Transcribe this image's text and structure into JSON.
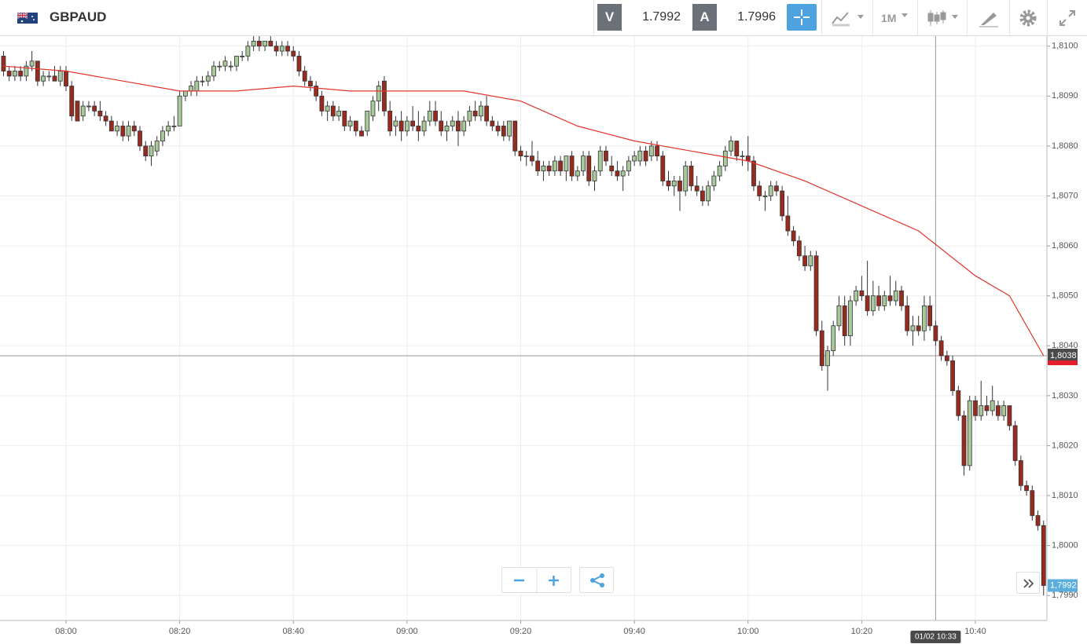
{
  "header": {
    "symbol": "GBPAUD",
    "bid_label": "V",
    "bid": 1.7992,
    "ask_label": "A",
    "ask": 1.7996,
    "timeframe": "1M"
  },
  "chart_data": {
    "type": "candlestick",
    "x": [
      "07:49",
      "07:50",
      "07:51",
      "07:52",
      "07:53",
      "07:54",
      "07:55",
      "07:56",
      "07:57",
      "07:58",
      "07:59",
      "08:00",
      "08:01",
      "08:02",
      "08:03",
      "08:04",
      "08:05",
      "08:06",
      "08:07",
      "08:08",
      "08:09",
      "08:10",
      "08:11",
      "08:12",
      "08:13",
      "08:14",
      "08:15",
      "08:16",
      "08:17",
      "08:18",
      "08:19",
      "08:20",
      "08:21",
      "08:22",
      "08:23",
      "08:24",
      "08:25",
      "08:26",
      "08:27",
      "08:28",
      "08:29",
      "08:30",
      "08:31",
      "08:32",
      "08:33",
      "08:34",
      "08:35",
      "08:36",
      "08:37",
      "08:38",
      "08:39",
      "08:40",
      "08:41",
      "08:42",
      "08:43",
      "08:44",
      "08:45",
      "08:46",
      "08:47",
      "08:48",
      "08:49",
      "08:50",
      "08:51",
      "08:52",
      "08:53",
      "08:54",
      "08:55",
      "08:56",
      "08:57",
      "08:58",
      "08:59",
      "09:00",
      "09:01",
      "09:02",
      "09:03",
      "09:04",
      "09:05",
      "09:06",
      "09:07",
      "09:08",
      "09:09",
      "09:10",
      "09:11",
      "09:12",
      "09:13",
      "09:14",
      "09:15",
      "09:16",
      "09:17",
      "09:18",
      "09:19",
      "09:20",
      "09:21",
      "09:22",
      "09:23",
      "09:24",
      "09:25",
      "09:26",
      "09:27",
      "09:28",
      "09:29",
      "09:30",
      "09:31",
      "09:32",
      "09:33",
      "09:34",
      "09:35",
      "09:36",
      "09:37",
      "09:38",
      "09:39",
      "09:40",
      "09:41",
      "09:42",
      "09:43",
      "09:44",
      "09:45",
      "09:46",
      "09:47",
      "09:48",
      "09:49",
      "09:50",
      "09:51",
      "09:52",
      "09:53",
      "09:54",
      "09:55",
      "09:56",
      "09:57",
      "09:58",
      "09:59",
      "10:00",
      "10:01",
      "10:02",
      "10:03",
      "10:04",
      "10:05",
      "10:06",
      "10:07",
      "10:08",
      "10:09",
      "10:10",
      "10:11",
      "10:12",
      "10:13",
      "10:14",
      "10:15",
      "10:16",
      "10:17",
      "10:18",
      "10:19",
      "10:20",
      "10:21",
      "10:22",
      "10:23",
      "10:24",
      "10:25",
      "10:26",
      "10:27",
      "10:28",
      "10:29",
      "10:30",
      "10:31",
      "10:32",
      "10:33",
      "10:34",
      "10:35",
      "10:36",
      "10:37",
      "10:38",
      "10:39",
      "10:40",
      "10:41",
      "10:42",
      "10:43",
      "10:44",
      "10:45",
      "10:46",
      "10:47",
      "10:48",
      "10:49",
      "10:50",
      "10:51",
      "10:52"
    ],
    "candles": [
      [
        1.8098,
        1.8099,
        1.8094,
        1.8095
      ],
      [
        1.8095,
        1.8096,
        1.8093,
        1.8094
      ],
      [
        1.8094,
        1.8096,
        1.8093,
        1.8095
      ],
      [
        1.8095,
        1.8096,
        1.8093,
        1.8094
      ],
      [
        1.8094,
        1.8097,
        1.8093,
        1.8096
      ],
      [
        1.8096,
        1.8099,
        1.8095,
        1.8097
      ],
      [
        1.8097,
        1.8097,
        1.8092,
        1.8093
      ],
      [
        1.8093,
        1.8095,
        1.8092,
        1.8094
      ],
      [
        1.8094,
        1.8095,
        1.8093,
        1.8094
      ],
      [
        1.8094,
        1.8096,
        1.8093,
        1.8093
      ],
      [
        1.8093,
        1.8096,
        1.8092,
        1.8095
      ],
      [
        1.8095,
        1.8096,
        1.8091,
        1.8092
      ],
      [
        1.8092,
        1.8093,
        1.8085,
        1.8086
      ],
      [
        1.8089,
        1.8089,
        1.8085,
        1.8085
      ],
      [
        1.8086,
        1.8089,
        1.8085,
        1.8088
      ],
      [
        1.8088,
        1.8089,
        1.8087,
        1.8088
      ],
      [
        1.8088,
        1.8089,
        1.8086,
        1.8087
      ],
      [
        1.8087,
        1.8089,
        1.8085,
        1.8086
      ],
      [
        1.8086,
        1.8087,
        1.8084,
        1.8085
      ],
      [
        1.8085,
        1.8086,
        1.8083,
        1.8083
      ],
      [
        1.8083,
        1.8085,
        1.8082,
        1.8084
      ],
      [
        1.8084,
        1.8085,
        1.8081,
        1.8082
      ],
      [
        1.8082,
        1.8085,
        1.8081,
        1.8084
      ],
      [
        1.8084,
        1.8085,
        1.8082,
        1.8083
      ],
      [
        1.8083,
        1.8084,
        1.8079,
        1.808
      ],
      [
        1.808,
        1.8081,
        1.8077,
        1.8078
      ],
      [
        1.8078,
        1.8081,
        1.8076,
        1.808
      ],
      [
        1.8079,
        1.8082,
        1.8078,
        1.8081
      ],
      [
        1.8081,
        1.8084,
        1.808,
        1.8083
      ],
      [
        1.8083,
        1.8085,
        1.8082,
        1.8084
      ],
      [
        1.8084,
        1.8086,
        1.8083,
        1.8084
      ],
      [
        1.8084,
        1.8091,
        1.8084,
        1.809
      ],
      [
        1.809,
        1.8091,
        1.8089,
        1.8091
      ],
      [
        1.8091,
        1.8093,
        1.809,
        1.8092
      ],
      [
        1.8091,
        1.8094,
        1.809,
        1.8093
      ],
      [
        1.8093,
        1.8094,
        1.8092,
        1.8093
      ],
      [
        1.8093,
        1.8095,
        1.8092,
        1.8094
      ],
      [
        1.8094,
        1.8097,
        1.8093,
        1.8096
      ],
      [
        1.8096,
        1.8097,
        1.8095,
        1.8096
      ],
      [
        1.8096,
        1.8098,
        1.8095,
        1.8097
      ],
      [
        1.8096,
        1.8097,
        1.8095,
        1.8096
      ],
      [
        1.8096,
        1.8098,
        1.8095,
        1.8098
      ],
      [
        1.8098,
        1.8099,
        1.8097,
        1.8098
      ],
      [
        1.8098,
        1.8101,
        1.8097,
        1.81
      ],
      [
        1.81,
        1.8102,
        1.8099,
        1.8101
      ],
      [
        1.8101,
        1.8102,
        1.8099,
        1.81
      ],
      [
        1.81,
        1.8101,
        1.8099,
        1.8101
      ],
      [
        1.8101,
        1.8102,
        1.81,
        1.81
      ],
      [
        1.81,
        1.8101,
        1.8098,
        1.8099
      ],
      [
        1.8099,
        1.8101,
        1.8098,
        1.81
      ],
      [
        1.81,
        1.8101,
        1.8098,
        1.8099
      ],
      [
        1.8099,
        1.81,
        1.8097,
        1.8098
      ],
      [
        1.8098,
        1.8099,
        1.8094,
        1.8095
      ],
      [
        1.8095,
        1.8096,
        1.8092,
        1.8093
      ],
      [
        1.8093,
        1.8094,
        1.8091,
        1.8092
      ],
      [
        1.8092,
        1.8093,
        1.8089,
        1.809
      ],
      [
        1.809,
        1.8091,
        1.8086,
        1.8087
      ],
      [
        1.8087,
        1.8089,
        1.8085,
        1.8088
      ],
      [
        1.8088,
        1.8089,
        1.8085,
        1.8086
      ],
      [
        1.8086,
        1.8088,
        1.8085,
        1.8087
      ],
      [
        1.8087,
        1.8087,
        1.8083,
        1.8084
      ],
      [
        1.8084,
        1.8086,
        1.8083,
        1.8085
      ],
      [
        1.8085,
        1.8085,
        1.8082,
        1.8083
      ],
      [
        1.8083,
        1.8084,
        1.8082,
        1.8082
      ],
      [
        1.8083,
        1.8087,
        1.8082,
        1.8087
      ],
      [
        1.8086,
        1.809,
        1.8085,
        1.8089
      ],
      [
        1.8089,
        1.8093,
        1.8087,
        1.8092
      ],
      [
        1.8093,
        1.8094,
        1.8086,
        1.8087
      ],
      [
        1.8087,
        1.8089,
        1.8082,
        1.8083
      ],
      [
        1.8084,
        1.8086,
        1.8082,
        1.8085
      ],
      [
        1.8085,
        1.8087,
        1.8081,
        1.8083
      ],
      [
        1.8083,
        1.8086,
        1.8082,
        1.8085
      ],
      [
        1.8085,
        1.8088,
        1.8083,
        1.8084
      ],
      [
        1.8084,
        1.8087,
        1.8081,
        1.8083
      ],
      [
        1.8083,
        1.8086,
        1.8082,
        1.8085
      ],
      [
        1.8085,
        1.8089,
        1.8084,
        1.8087
      ],
      [
        1.8087,
        1.8089,
        1.8084,
        1.8085
      ],
      [
        1.8085,
        1.8087,
        1.8082,
        1.8083
      ],
      [
        1.8083,
        1.8085,
        1.8081,
        1.8084
      ],
      [
        1.8084,
        1.8086,
        1.8083,
        1.8085
      ],
      [
        1.8085,
        1.8087,
        1.808,
        1.8083
      ],
      [
        1.8083,
        1.8086,
        1.8082,
        1.8085
      ],
      [
        1.8085,
        1.8088,
        1.8084,
        1.8087
      ],
      [
        1.8087,
        1.8089,
        1.8085,
        1.8086
      ],
      [
        1.8086,
        1.8089,
        1.8085,
        1.8088
      ],
      [
        1.8088,
        1.809,
        1.8084,
        1.8085
      ],
      [
        1.8085,
        1.8086,
        1.8083,
        1.8084
      ],
      [
        1.8084,
        1.8085,
        1.8082,
        1.8083
      ],
      [
        1.8084,
        1.8085,
        1.8081,
        1.8082
      ],
      [
        1.8082,
        1.8085,
        1.8081,
        1.8085
      ],
      [
        1.8085,
        1.8085,
        1.8078,
        1.8079
      ],
      [
        1.8079,
        1.808,
        1.8077,
        1.8078
      ],
      [
        1.8078,
        1.8079,
        1.8076,
        1.8078
      ],
      [
        1.8078,
        1.8081,
        1.8076,
        1.8077
      ],
      [
        1.8077,
        1.8079,
        1.8074,
        1.8075
      ],
      [
        1.8075,
        1.8077,
        1.8073,
        1.8076
      ],
      [
        1.8076,
        1.8077,
        1.8074,
        1.8075
      ],
      [
        1.8075,
        1.8078,
        1.8074,
        1.8077
      ],
      [
        1.8077,
        1.8078,
        1.8074,
        1.8075
      ],
      [
        1.8075,
        1.8078,
        1.8073,
        1.8078
      ],
      [
        1.8078,
        1.8079,
        1.8073,
        1.8074
      ],
      [
        1.8074,
        1.8076,
        1.8073,
        1.8075
      ],
      [
        1.8075,
        1.8079,
        1.8074,
        1.8078
      ],
      [
        1.8078,
        1.8079,
        1.8072,
        1.8073
      ],
      [
        1.8073,
        1.8076,
        1.8071,
        1.8075
      ],
      [
        1.8075,
        1.808,
        1.8074,
        1.8079
      ],
      [
        1.8079,
        1.808,
        1.8076,
        1.8077
      ],
      [
        1.8076,
        1.8078,
        1.8074,
        1.8075
      ],
      [
        1.8075,
        1.8077,
        1.8073,
        1.8074
      ],
      [
        1.8074,
        1.8076,
        1.8071,
        1.8075
      ],
      [
        1.8075,
        1.8078,
        1.8074,
        1.8077
      ],
      [
        1.8077,
        1.8079,
        1.8076,
        1.8078
      ],
      [
        1.8077,
        1.808,
        1.8076,
        1.8079
      ],
      [
        1.8079,
        1.808,
        1.8076,
        1.8077
      ],
      [
        1.8078,
        1.8081,
        1.8077,
        1.808
      ],
      [
        1.808,
        1.8081,
        1.8077,
        1.8078
      ],
      [
        1.8078,
        1.8079,
        1.8072,
        1.8073
      ],
      [
        1.8073,
        1.8075,
        1.8071,
        1.8072
      ],
      [
        1.8072,
        1.8074,
        1.807,
        1.8073
      ],
      [
        1.8073,
        1.8074,
        1.8067,
        1.8071
      ],
      [
        1.8071,
        1.8077,
        1.807,
        1.8076
      ],
      [
        1.8076,
        1.8077,
        1.8071,
        1.8072
      ],
      [
        1.8072,
        1.8074,
        1.807,
        1.8071
      ],
      [
        1.8071,
        1.8072,
        1.8068,
        1.8069
      ],
      [
        1.8069,
        1.8073,
        1.8068,
        1.8072
      ],
      [
        1.8072,
        1.8075,
        1.8071,
        1.8074
      ],
      [
        1.8074,
        1.8077,
        1.8073,
        1.8076
      ],
      [
        1.8076,
        1.808,
        1.8075,
        1.8079
      ],
      [
        1.8079,
        1.8082,
        1.8078,
        1.8081
      ],
      [
        1.8081,
        1.8081,
        1.8077,
        1.8078
      ],
      [
        1.8078,
        1.8079,
        1.8076,
        1.8078
      ],
      [
        1.8078,
        1.8082,
        1.8075,
        1.8077
      ],
      [
        1.8077,
        1.8078,
        1.8071,
        1.8072
      ],
      [
        1.8072,
        1.8073,
        1.8069,
        1.807
      ],
      [
        1.807,
        1.8071,
        1.8067,
        1.807
      ],
      [
        1.807,
        1.8073,
        1.8069,
        1.8072
      ],
      [
        1.8072,
        1.8073,
        1.807,
        1.8071
      ],
      [
        1.8071,
        1.8072,
        1.8065,
        1.8066
      ],
      [
        1.8066,
        1.807,
        1.8062,
        1.8063
      ],
      [
        1.8063,
        1.8064,
        1.806,
        1.8061
      ],
      [
        1.8061,
        1.8062,
        1.8057,
        1.8058
      ],
      [
        1.8058,
        1.806,
        1.8055,
        1.8056
      ],
      [
        1.8056,
        1.8059,
        1.8055,
        1.8058
      ],
      [
        1.8058,
        1.8059,
        1.8042,
        1.8043
      ],
      [
        1.8043,
        1.8045,
        1.8035,
        1.8036
      ],
      [
        1.8036,
        1.804,
        1.8031,
        1.8039
      ],
      [
        1.8039,
        1.8045,
        1.8038,
        1.8044
      ],
      [
        1.8044,
        1.805,
        1.8043,
        1.8048
      ],
      [
        1.8048,
        1.805,
        1.804,
        1.8042
      ],
      [
        1.8042,
        1.805,
        1.804,
        1.8049
      ],
      [
        1.8049,
        1.8052,
        1.8048,
        1.8051
      ],
      [
        1.8051,
        1.8054,
        1.8049,
        1.805
      ],
      [
        1.805,
        1.8057,
        1.8046,
        1.8047
      ],
      [
        1.8047,
        1.8053,
        1.8046,
        1.805
      ],
      [
        1.805,
        1.8052,
        1.8047,
        1.8048
      ],
      [
        1.8048,
        1.8051,
        1.8047,
        1.805
      ],
      [
        1.805,
        1.8054,
        1.8048,
        1.8049
      ],
      [
        1.8049,
        1.8053,
        1.8048,
        1.8051
      ],
      [
        1.8051,
        1.8052,
        1.8047,
        1.8048
      ],
      [
        1.8048,
        1.805,
        1.8042,
        1.8043
      ],
      [
        1.8043,
        1.8046,
        1.804,
        1.8044
      ],
      [
        1.8044,
        1.8046,
        1.8042,
        1.8043
      ],
      [
        1.8043,
        1.805,
        1.8041,
        1.8048
      ],
      [
        1.8048,
        1.805,
        1.8043,
        1.8044
      ],
      [
        1.8044,
        1.8045,
        1.804,
        1.8041
      ],
      [
        1.8041,
        1.8042,
        1.8037,
        1.8038
      ],
      [
        1.8038,
        1.8039,
        1.8036,
        1.8037
      ],
      [
        1.8037,
        1.8038,
        1.803,
        1.8031
      ],
      [
        1.8031,
        1.8032,
        1.8025,
        1.8026
      ],
      [
        1.8026,
        1.8027,
        1.8014,
        1.8016
      ],
      [
        1.8016,
        1.803,
        1.8015,
        1.8029
      ],
      [
        1.8029,
        1.803,
        1.8025,
        1.8026
      ],
      [
        1.8026,
        1.8033,
        1.8025,
        1.8028
      ],
      [
        1.8028,
        1.803,
        1.8026,
        1.8027
      ],
      [
        1.8027,
        1.8032,
        1.8026,
        1.8029
      ],
      [
        1.8028,
        1.8029,
        1.8025,
        1.8026
      ],
      [
        1.8026,
        1.8029,
        1.8025,
        1.8028
      ],
      [
        1.8028,
        1.8028,
        1.8023,
        1.8024
      ],
      [
        1.8024,
        1.8025,
        1.8016,
        1.8017
      ],
      [
        1.8017,
        1.8018,
        1.8011,
        1.8012
      ],
      [
        1.8012,
        1.8013,
        1.801,
        1.8011
      ],
      [
        1.8011,
        1.8012,
        1.8005,
        1.8006
      ],
      [
        1.8006,
        1.8007,
        1.8003,
        1.8004
      ],
      [
        1.8004,
        1.8005,
        1.799,
        1.7992
      ]
    ],
    "up_color": "#a9c99b",
    "down_color": "#982a1e",
    "ma": {
      "color": "#e3342b",
      "x": [
        "07:49",
        "08:00",
        "08:10",
        "08:20",
        "08:30",
        "08:40",
        "08:50",
        "09:00",
        "09:10",
        "09:20",
        "09:30",
        "09:40",
        "09:50",
        "10:00",
        "10:10",
        "10:20",
        "10:30",
        "10:40",
        "10:46",
        "10:52"
      ],
      "values": [
        1.8096,
        1.8095,
        1.8093,
        1.8091,
        1.8091,
        1.8092,
        1.8091,
        1.8091,
        1.8091,
        1.8089,
        1.8084,
        1.8081,
        1.8079,
        1.8077,
        1.8073,
        1.8068,
        1.8063,
        1.8054,
        1.805,
        1.8038
      ]
    },
    "ylim": [
      1.7985,
      1.8102
    ],
    "yticks": [
      {
        "value": 1.799,
        "label": "1,7990"
      },
      {
        "value": 1.8,
        "label": "1,8000"
      },
      {
        "value": 1.801,
        "label": "1,8010"
      },
      {
        "value": 1.802,
        "label": "1,8020"
      },
      {
        "value": 1.803,
        "label": "1,8030"
      },
      {
        "value": 1.804,
        "label": "1,8040"
      },
      {
        "value": 1.805,
        "label": "1,8050"
      },
      {
        "value": 1.806,
        "label": "1,8060"
      },
      {
        "value": 1.807,
        "label": "1,8070"
      },
      {
        "value": 1.808,
        "label": "1,8080"
      },
      {
        "value": 1.809,
        "label": "1,8090"
      },
      {
        "value": 1.81,
        "label": "1,8100"
      }
    ],
    "xticks": [
      "08:00",
      "08:20",
      "08:40",
      "09:00",
      "09:20",
      "09:40",
      "10:00",
      "10:20",
      "10:40"
    ],
    "grid": true,
    "crosshair": {
      "x": "01/02 10:33",
      "y": {
        "value": 1.8038,
        "label": "1,8038"
      }
    },
    "last_price": {
      "value": 1.7992,
      "label": "1,7992"
    }
  }
}
